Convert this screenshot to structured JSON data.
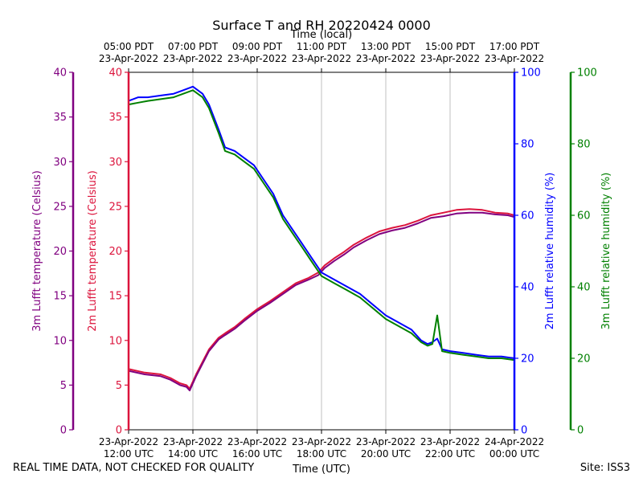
{
  "chart_data": {
    "type": "line",
    "title": "Surface T and RH 20220424 0000",
    "xlabel": "Time (UTC)",
    "x2label": "Time (local)",
    "x_ticks_utc": [
      [
        "23-Apr-2022",
        "12:00 UTC"
      ],
      [
        "23-Apr-2022",
        "14:00 UTC"
      ],
      [
        "23-Apr-2022",
        "16:00 UTC"
      ],
      [
        "23-Apr-2022",
        "18:00 UTC"
      ],
      [
        "23-Apr-2022",
        "20:00 UTC"
      ],
      [
        "23-Apr-2022",
        "22:00 UTC"
      ],
      [
        "24-Apr-2022",
        "00:00 UTC"
      ]
    ],
    "x_ticks_local": [
      [
        "05:00 PDT",
        "23-Apr-2022"
      ],
      [
        "07:00 PDT",
        "23-Apr-2022"
      ],
      [
        "09:00 PDT",
        "23-Apr-2022"
      ],
      [
        "11:00 PDT",
        "23-Apr-2022"
      ],
      [
        "13:00 PDT",
        "23-Apr-2022"
      ],
      [
        "15:00 PDT",
        "23-Apr-2022"
      ],
      [
        "17:00 PDT",
        "23-Apr-2022"
      ]
    ],
    "x_hours": [
      12,
      14,
      16,
      18,
      20,
      22,
      24
    ],
    "xlim": [
      12,
      24
    ],
    "axes": [
      {
        "id": "t3",
        "label": "3m Lufft temperature (Celsius)",
        "color": "#800080",
        "ylim": [
          0,
          40
        ],
        "ticks": [
          0,
          5,
          10,
          15,
          20,
          25,
          30,
          35,
          40
        ]
      },
      {
        "id": "t2",
        "label": "2m Lufft temperature (Celsius)",
        "color": "#dc143c",
        "ylim": [
          0,
          40
        ],
        "ticks": [
          0,
          5,
          10,
          15,
          20,
          25,
          30,
          35,
          40
        ]
      },
      {
        "id": "rh2",
        "label": "2m Lufft relative humidity (%)",
        "color": "#0000ff",
        "ylim": [
          0,
          100
        ],
        "ticks": [
          0,
          20,
          40,
          60,
          80,
          100
        ]
      },
      {
        "id": "rh3",
        "label": "3m Lufft relative humidity (%)",
        "color": "#008000",
        "ylim": [
          0,
          100
        ],
        "ticks": [
          0,
          20,
          40,
          60,
          80,
          100
        ]
      }
    ],
    "series": [
      {
        "name": "2m Lufft temperature",
        "axis": "t2",
        "color": "#dc143c",
        "x": [
          12.0,
          12.5,
          13.0,
          13.3,
          13.6,
          13.8,
          13.9,
          14.1,
          14.3,
          14.5,
          14.8,
          15.0,
          15.3,
          15.6,
          16.0,
          16.4,
          16.8,
          17.2,
          17.6,
          17.9,
          18.1,
          18.4,
          18.7,
          19.0,
          19.4,
          19.8,
          20.2,
          20.6,
          21.0,
          21.4,
          21.8,
          22.2,
          22.6,
          23.0,
          23.4,
          23.8,
          24.0
        ],
        "y": [
          6.8,
          6.4,
          6.2,
          5.8,
          5.2,
          5.0,
          4.6,
          6.2,
          7.6,
          9.0,
          10.3,
          10.8,
          11.5,
          12.4,
          13.5,
          14.4,
          15.4,
          16.4,
          17.0,
          17.6,
          18.4,
          19.2,
          19.9,
          20.7,
          21.5,
          22.2,
          22.6,
          22.9,
          23.4,
          24.0,
          24.3,
          24.6,
          24.7,
          24.6,
          24.3,
          24.2,
          24.0
        ]
      },
      {
        "name": "3m Lufft temperature",
        "axis": "t3",
        "color": "#800080",
        "x": [
          12.0,
          12.5,
          13.0,
          13.3,
          13.6,
          13.8,
          13.9,
          14.1,
          14.3,
          14.5,
          14.8,
          15.0,
          15.3,
          15.6,
          16.0,
          16.4,
          16.8,
          17.2,
          17.6,
          17.9,
          18.1,
          18.4,
          18.7,
          19.0,
          19.4,
          19.8,
          20.2,
          20.6,
          21.0,
          21.4,
          21.8,
          22.2,
          22.6,
          23.0,
          23.4,
          23.8,
          24.0
        ],
        "y": [
          6.6,
          6.2,
          6.0,
          5.6,
          5.0,
          4.8,
          4.4,
          6.0,
          7.4,
          8.8,
          10.1,
          10.6,
          11.3,
          12.2,
          13.3,
          14.2,
          15.2,
          16.2,
          16.8,
          17.3,
          18.1,
          18.9,
          19.6,
          20.4,
          21.2,
          21.9,
          22.3,
          22.6,
          23.1,
          23.7,
          23.9,
          24.2,
          24.3,
          24.3,
          24.1,
          24.0,
          23.8
        ]
      },
      {
        "name": "2m Lufft relative humidity",
        "axis": "rh2",
        "color": "#0000ff",
        "x": [
          12.0,
          12.3,
          12.6,
          13.0,
          13.4,
          13.7,
          14.0,
          14.3,
          14.5,
          14.8,
          15.0,
          15.3,
          15.6,
          15.9,
          16.2,
          16.5,
          16.8,
          17.1,
          17.4,
          17.7,
          18.0,
          18.4,
          18.8,
          19.2,
          19.6,
          20.0,
          20.4,
          20.8,
          21.1,
          21.3,
          21.45,
          21.6,
          21.75,
          22.0,
          22.4,
          22.8,
          23.2,
          23.6,
          24.0
        ],
        "y": [
          92,
          93,
          93,
          93.5,
          94,
          95,
          96,
          94,
          91,
          84,
          79,
          78,
          76,
          74,
          70,
          66,
          60,
          56,
          52,
          48,
          44,
          42,
          40,
          38,
          35,
          32,
          30,
          28,
          25,
          24,
          24.5,
          25.5,
          22.5,
          22,
          21.5,
          21,
          20.5,
          20.5,
          20
        ]
      },
      {
        "name": "3m Lufft relative humidity",
        "axis": "rh3",
        "color": "#008000",
        "x": [
          12.0,
          12.3,
          12.6,
          13.0,
          13.4,
          13.7,
          14.0,
          14.3,
          14.5,
          14.8,
          15.0,
          15.3,
          15.6,
          15.9,
          16.2,
          16.5,
          16.8,
          17.1,
          17.4,
          17.7,
          18.0,
          18.4,
          18.8,
          19.2,
          19.6,
          20.0,
          20.4,
          20.8,
          21.1,
          21.3,
          21.45,
          21.6,
          21.75,
          22.0,
          22.4,
          22.8,
          23.2,
          23.6,
          24.0
        ],
        "y": [
          91,
          91.5,
          92,
          92.5,
          93,
          94,
          95,
          93,
          90,
          83,
          78,
          77,
          75,
          73,
          69,
          65,
          59,
          55,
          51,
          47,
          43,
          41,
          39,
          37,
          34,
          31,
          29,
          27,
          24.5,
          23.5,
          24,
          32,
          22,
          21.5,
          21,
          20.5,
          20,
          20,
          19.5
        ]
      }
    ]
  },
  "footer": {
    "left": "REAL TIME DATA, NOT CHECKED FOR QUALITY",
    "right": "Site: ISS3"
  }
}
